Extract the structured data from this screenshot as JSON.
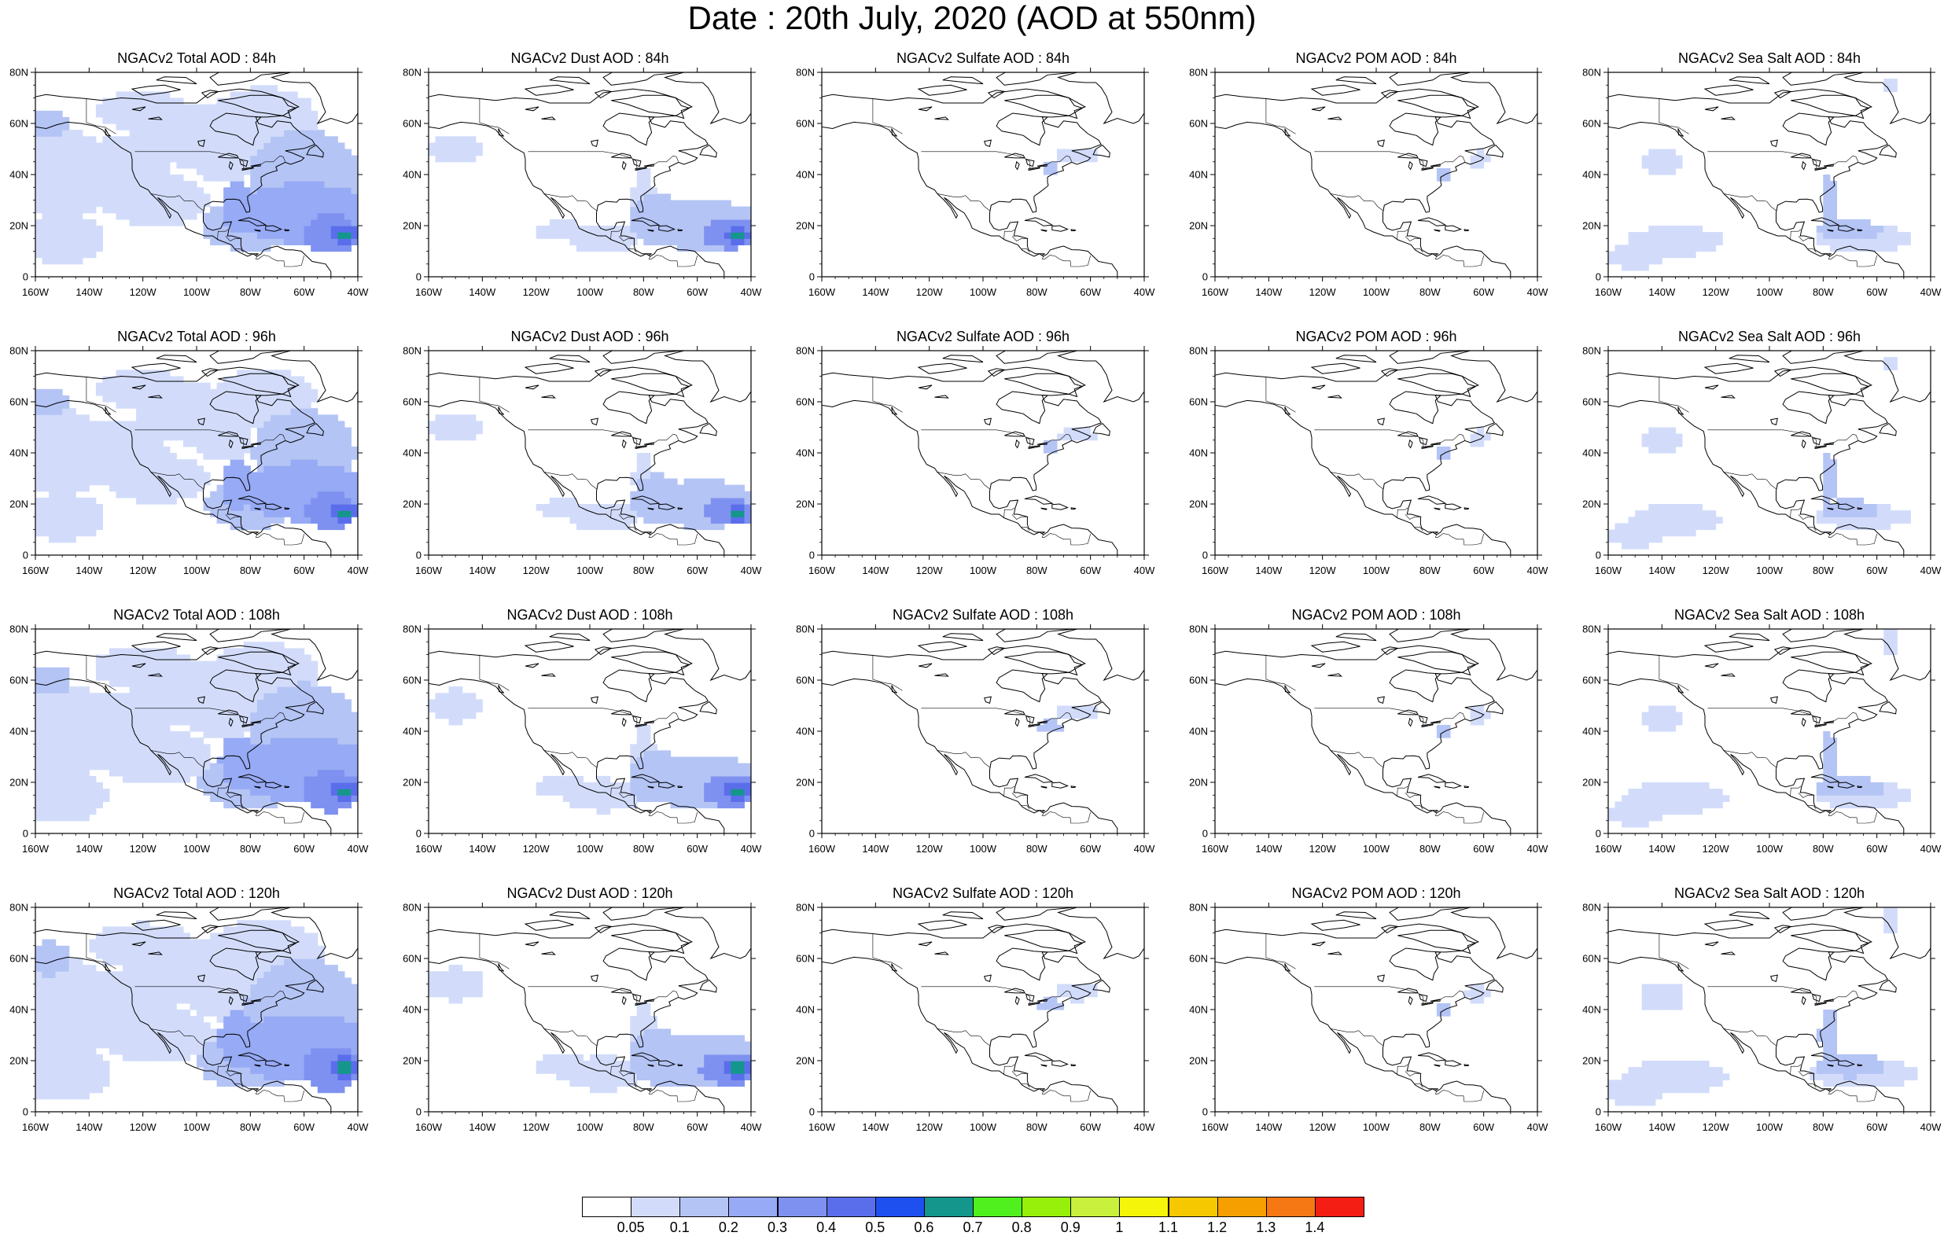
{
  "title": "Date : 20th July, 2020 (AOD at 550nm)",
  "axes": {
    "x_ticks": [
      "160W",
      "140W",
      "120W",
      "100W",
      "80W",
      "60W",
      "40W"
    ],
    "y_ticks": [
      "80N",
      "60N",
      "40N",
      "20N",
      "0"
    ]
  },
  "panels": [
    {
      "title": "NGACv2 Total AOD : 84h",
      "species": "total",
      "lead_hour": 84
    },
    {
      "title": "NGACv2 Dust AOD : 84h",
      "species": "dust",
      "lead_hour": 84
    },
    {
      "title": "NGACv2 Sulfate AOD : 84h",
      "species": "sulfate",
      "lead_hour": 84
    },
    {
      "title": "NGACv2 POM AOD : 84h",
      "species": "pom",
      "lead_hour": 84
    },
    {
      "title": "NGACv2 Sea Salt AOD : 84h",
      "species": "seasalt",
      "lead_hour": 84
    },
    {
      "title": "NGACv2 Total AOD : 96h",
      "species": "total",
      "lead_hour": 96
    },
    {
      "title": "NGACv2 Dust AOD : 96h",
      "species": "dust",
      "lead_hour": 96
    },
    {
      "title": "NGACv2 Sulfate AOD : 96h",
      "species": "sulfate",
      "lead_hour": 96
    },
    {
      "title": "NGACv2 POM AOD : 96h",
      "species": "pom",
      "lead_hour": 96
    },
    {
      "title": "NGACv2 Sea Salt AOD : 96h",
      "species": "seasalt",
      "lead_hour": 96
    },
    {
      "title": "NGACv2 Total AOD : 108h",
      "species": "total",
      "lead_hour": 108
    },
    {
      "title": "NGACv2 Dust AOD : 108h",
      "species": "dust",
      "lead_hour": 108
    },
    {
      "title": "NGACv2 Sulfate AOD : 108h",
      "species": "sulfate",
      "lead_hour": 108
    },
    {
      "title": "NGACv2 POM AOD : 108h",
      "species": "pom",
      "lead_hour": 108
    },
    {
      "title": "NGACv2 Sea Salt AOD : 108h",
      "species": "seasalt",
      "lead_hour": 108
    },
    {
      "title": "NGACv2 Total AOD : 120h",
      "species": "total",
      "lead_hour": 120
    },
    {
      "title": "NGACv2 Dust AOD : 120h",
      "species": "dust",
      "lead_hour": 120
    },
    {
      "title": "NGACv2 Sulfate AOD : 120h",
      "species": "sulfate",
      "lead_hour": 120
    },
    {
      "title": "NGACv2 POM AOD : 120h",
      "species": "pom",
      "lead_hour": 120
    },
    {
      "title": "NGACv2 Sea Salt  AOD : 120h",
      "species": "seasalt",
      "lead_hour": 120
    }
  ],
  "colorbar": {
    "labels": [
      "0.05",
      "0.1",
      "0.2",
      "0.3",
      "0.4",
      "0.5",
      "0.6",
      "0.7",
      "0.8",
      "0.9",
      "1",
      "1.1",
      "1.2",
      "1.3",
      "1.4"
    ],
    "colors": [
      "#ffffff",
      "#d2dcfa",
      "#b4c4f5",
      "#96aaf5",
      "#7f91f0",
      "#5a6eeb",
      "#1e50f0",
      "#14968c",
      "#50f01e",
      "#96f00a",
      "#c8f03c",
      "#f5f50a",
      "#f5c800",
      "#f5a000",
      "#f57814",
      "#f51e14"
    ]
  }
}
